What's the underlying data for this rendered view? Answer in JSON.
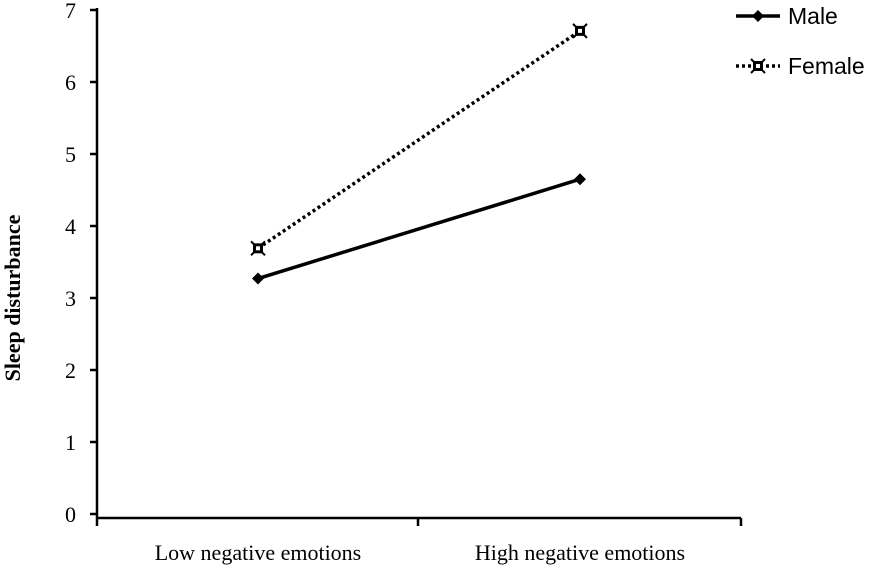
{
  "chart_data": {
    "type": "line",
    "title": "",
    "xlabel": "",
    "ylabel": "Sleep disturbance",
    "categories": [
      "Low negative emotions",
      "High negative emotions"
    ],
    "ylim": [
      0,
      7
    ],
    "yticks": [
      "0",
      "1",
      "2",
      "3",
      "4",
      "5",
      "6",
      "7"
    ],
    "grid": false,
    "legend_position": "top-right",
    "series": [
      {
        "name": "Male",
        "values": [
          3.27,
          4.65
        ],
        "line_style": "solid",
        "marker": "diamond",
        "color": "#000000"
      },
      {
        "name": "Female",
        "values": [
          3.69,
          6.71
        ],
        "line_style": "dotted",
        "marker": "square-x",
        "color": "#000000"
      }
    ]
  }
}
